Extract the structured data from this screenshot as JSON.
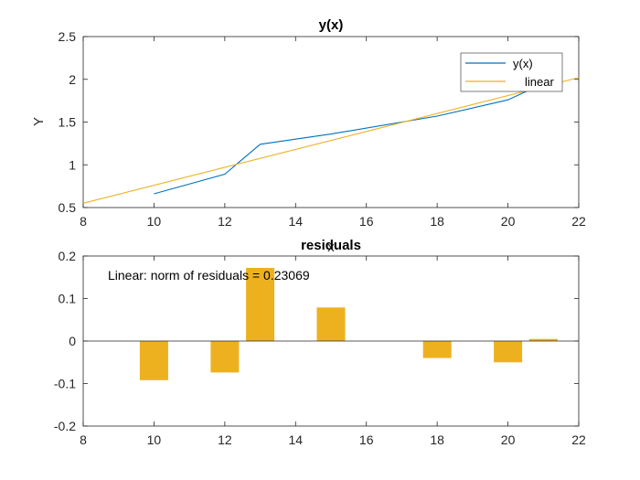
{
  "chart_data": [
    {
      "type": "line",
      "title": "y(x)",
      "xlabel": "x",
      "ylabel": "Y",
      "xlim": [
        8,
        22
      ],
      "ylim": [
        0.5,
        2.5
      ],
      "xticks": [
        8,
        10,
        12,
        14,
        16,
        18,
        20,
        22
      ],
      "yticks": [
        0.5,
        1,
        1.5,
        2,
        2.5
      ],
      "grid": false,
      "legend_placement": "top-right",
      "series": [
        {
          "name": "y(x)",
          "color": "#0072BD",
          "x": [
            10,
            12,
            13,
            15,
            18,
            20,
            21
          ],
          "y": [
            0.66,
            0.89,
            1.24,
            1.36,
            1.57,
            1.76,
            1.95
          ]
        },
        {
          "name": "linear",
          "color": "#EDB120",
          "x": [
            8,
            22
          ],
          "y": [
            0.55,
            2.02
          ]
        }
      ]
    },
    {
      "type": "bar",
      "title": "residuals",
      "xlim": [
        8,
        22
      ],
      "ylim": [
        -0.2,
        0.2
      ],
      "xticks": [
        8,
        10,
        12,
        14,
        16,
        18,
        20,
        22
      ],
      "yticks": [
        -0.2,
        -0.1,
        0,
        0.1,
        0.2
      ],
      "grid": false,
      "color": "#EDB120",
      "annotation": "Linear: norm of residuals = 0.23069",
      "x": [
        10,
        12,
        13,
        15,
        18,
        20,
        21
      ],
      "values": [
        -0.092,
        -0.074,
        0.172,
        0.079,
        -0.04,
        -0.05,
        0.005
      ]
    }
  ]
}
